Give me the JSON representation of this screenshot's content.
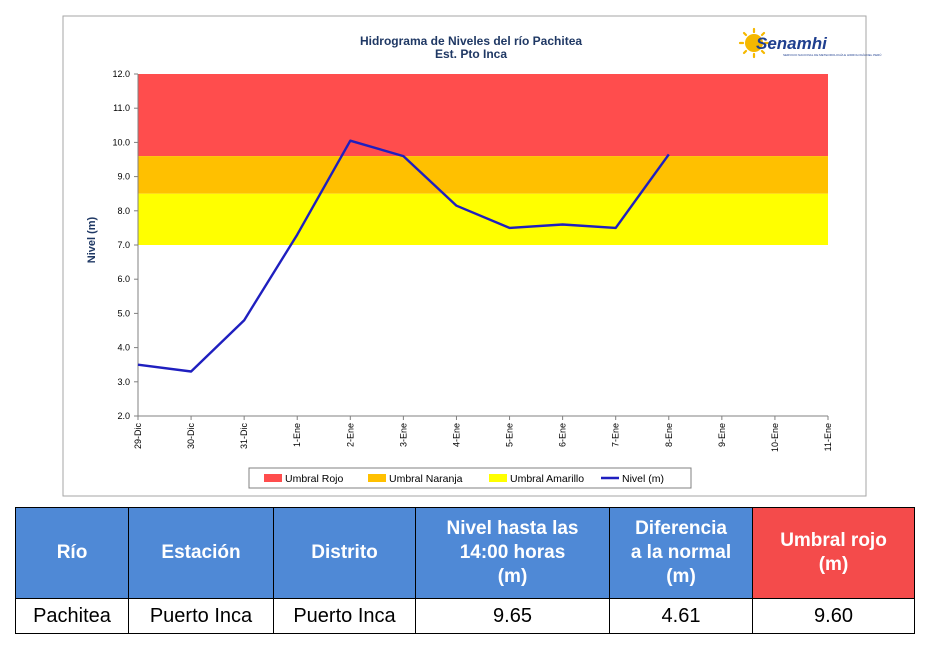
{
  "chart_data": {
    "type": "line",
    "title": "Hidrograma de Niveles del río Pachitea",
    "subtitle": "Est. Pto Inca",
    "ylabel": "Nivel (m)",
    "xlabel": "",
    "ylim": [
      2.0,
      12.0
    ],
    "yticks": [
      "12.0",
      "11.0",
      "10.0",
      "9.0",
      "8.0",
      "7.0",
      "6.0",
      "5.0",
      "4.0",
      "3.0",
      "2.0"
    ],
    "categories": [
      "29-Dic",
      "30-Dic",
      "31-Dic",
      "1-Ene",
      "2-Ene",
      "3-Ene",
      "4-Ene",
      "5-Ene",
      "6-Ene",
      "7-Ene",
      "8-Ene",
      "9-Ene",
      "10-Ene",
      "11-Ene"
    ],
    "series": [
      {
        "name": "Nivel (m)",
        "color": "#1f1fbf",
        "values": [
          3.5,
          3.3,
          4.8,
          7.3,
          10.05,
          9.6,
          8.15,
          7.5,
          7.6,
          7.5,
          9.65,
          null,
          null,
          null
        ]
      }
    ],
    "bands": [
      {
        "name": "Umbral Rojo",
        "from": 9.6,
        "to": 12.0,
        "color": "#ff4d4d"
      },
      {
        "name": "Umbral Naranja",
        "from": 8.5,
        "to": 9.6,
        "color": "#ffc000"
      },
      {
        "name": "Umbral Amarillo",
        "from": 7.0,
        "to": 8.5,
        "color": "#ffff00"
      }
    ],
    "legend": [
      {
        "label": "Umbral Rojo",
        "color": "#ff4d4d",
        "kind": "box"
      },
      {
        "label": "Umbral Naranja",
        "color": "#ffc000",
        "kind": "box"
      },
      {
        "label": "Umbral Amarillo",
        "color": "#ffff00",
        "kind": "box"
      },
      {
        "label": "Nivel (m)",
        "color": "#1f1fbf",
        "kind": "line"
      }
    ],
    "legend_position": "bottom",
    "grid": false
  },
  "logo": {
    "text": "Senamhi",
    "subtext": "SERVICIO NACIONAL DE METEOROLOGÍA E HIDROLOGÍA DEL PERÚ"
  },
  "table": {
    "headers": [
      {
        "lines": [
          "Río"
        ],
        "color": "#4f89d6"
      },
      {
        "lines": [
          "Estación"
        ],
        "color": "#4f89d6"
      },
      {
        "lines": [
          "Distrito"
        ],
        "color": "#4f89d6"
      },
      {
        "lines": [
          "Nivel hasta las",
          "14:00 horas",
          "(m)"
        ],
        "color": "#4f89d6"
      },
      {
        "lines": [
          "Diferencia",
          "a la normal",
          "(m)"
        ],
        "color": "#4f89d6"
      },
      {
        "lines": [
          "Umbral rojo",
          "(m)"
        ],
        "color": "#f44b4b"
      }
    ],
    "rows": [
      [
        "Pachitea",
        "Puerto Inca",
        "Puerto Inca",
        "9.65",
        "4.61",
        "9.60"
      ]
    ]
  }
}
